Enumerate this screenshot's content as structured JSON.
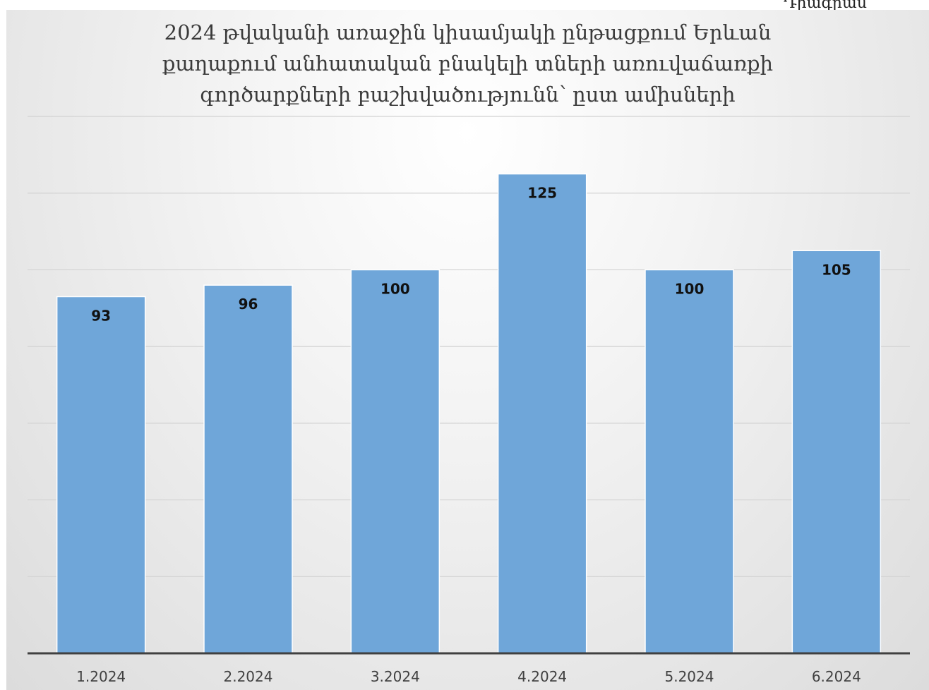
{
  "corner_text": "Դիագրամ",
  "chart_data": {
    "type": "bar",
    "title_lines": [
      "2024 թվականի առաջին կիսամյակի ընթացքում Երևան",
      "քաղաքում անհատական բնակելի տների առուվաճառքի",
      "գործարքների բաշխվածությունն՝ ըստ ամիսների"
    ],
    "categories": [
      "1.2024",
      "2.2024",
      "3.2024",
      "4.2024",
      "5.2024",
      "6.2024"
    ],
    "values": [
      93,
      96,
      100,
      125,
      100,
      105
    ],
    "ylim": [
      0,
      140
    ],
    "ytick_step": 20,
    "grid": true,
    "bar_color": "#6fa6d9",
    "label_color": "#111111",
    "grid_color": "#d2d2d2",
    "axis_color": "#404040"
  }
}
